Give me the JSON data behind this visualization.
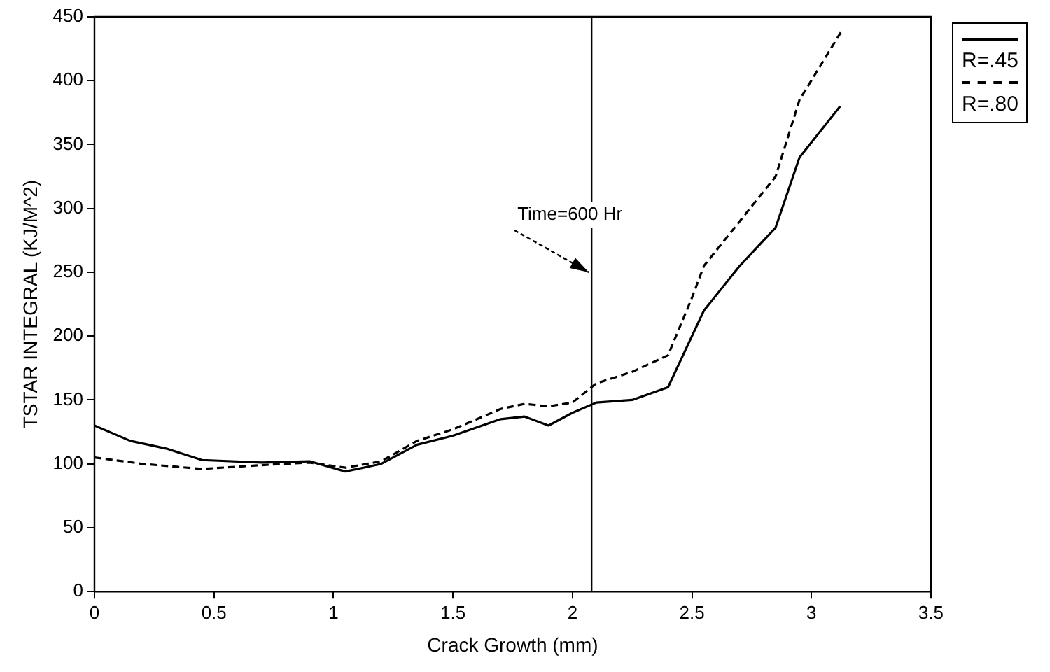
{
  "chart_data": {
    "type": "line",
    "xlabel": "Crack Growth (mm)",
    "ylabel": "TSTAR INTEGRAL (KJ/M^2)",
    "xlim": [
      0,
      3.5
    ],
    "xticks": [
      0,
      0.5,
      1,
      1.5,
      2,
      2.5,
      3,
      3.5
    ],
    "ylim": [
      0,
      450
    ],
    "yticks": [
      0,
      50,
      100,
      150,
      200,
      250,
      300,
      350,
      400,
      450
    ],
    "grid": false,
    "legend": "right",
    "marker": "none",
    "ref_lines": [
      {
        "axis": "x",
        "value": 2.08,
        "color": "#000000"
      }
    ],
    "annotations": [
      {
        "text": "Time=600 Hr",
        "x": 2.08,
        "y": 250
      }
    ],
    "series": [
      {
        "name": "R=.45",
        "color": "#000000",
        "line_style": "solid",
        "x": [
          0,
          0.15,
          0.3,
          0.45,
          0.7,
          0.9,
          1.05,
          1.2,
          1.35,
          1.5,
          1.7,
          1.8,
          1.9,
          2.0,
          2.1,
          2.25,
          2.4,
          2.55,
          2.7,
          2.85,
          2.95,
          3.12
        ],
        "values": [
          130,
          118,
          112,
          103,
          101,
          102,
          94,
          100,
          115,
          122,
          135,
          137,
          130,
          140,
          148,
          150,
          160,
          220,
          255,
          285,
          340,
          380
        ]
      },
      {
        "name": "R=.80",
        "color": "#000000",
        "line_style": "dashed",
        "x": [
          0,
          0.2,
          0.45,
          0.7,
          0.9,
          1.05,
          1.2,
          1.35,
          1.5,
          1.7,
          1.8,
          1.9,
          2.0,
          2.1,
          2.25,
          2.4,
          2.5,
          2.55,
          2.85,
          2.95,
          3.13
        ],
        "values": [
          105,
          100,
          96,
          99,
          101,
          97,
          102,
          118,
          127,
          143,
          147,
          145,
          148,
          163,
          172,
          185,
          230,
          255,
          325,
          385,
          440
        ]
      }
    ]
  }
}
